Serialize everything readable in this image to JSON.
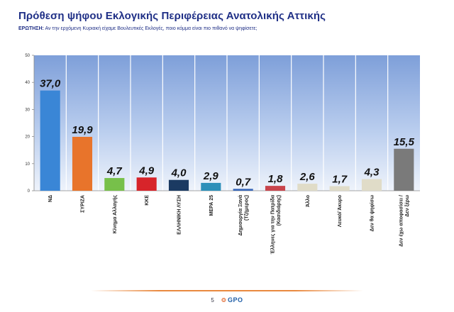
{
  "header": {
    "title": "Πρόθεση ψήφου Εκλογικής Περιφέρειας Ανατολικής Αττικής",
    "question_label": "ΕΡΩΤΗΣΗ:",
    "question_text": "Αν την ερχόμενη Κυριακή είχαμε Βουλευτικές Εκλογές, ποιο κόμμα είναι πιο πιθανό να ψηφίσετε;"
  },
  "footer": {
    "page_number": "5",
    "logo_mark": "❂",
    "logo_text": "GPO"
  },
  "chart_data": {
    "type": "bar",
    "title": "",
    "xlabel": "",
    "ylabel": "",
    "ylim": [
      0,
      50
    ],
    "yticks": [
      0,
      10,
      20,
      30,
      40,
      50
    ],
    "grid": false,
    "legend": "none",
    "categories": [
      "ΝΔ",
      "ΣΥΡΙΖΑ",
      "Κίνημα Αλλαγής",
      "ΚΚΕ",
      "ΕΛΛΗΝΙΚΗ ΛΥΣΗ",
      "ΜΕΡΑ 25",
      "Δημιουργία Ξανά (Τζήμερος)",
      "Έλληνες για την Πατρίδα (Κασιδιάρης)",
      "Άλλο",
      "Λευκό/ Άκυρο",
      "Δεν θα ψηφίσω",
      "Δεν έχω αποφασίσει / Δεν ξέρω"
    ],
    "values": [
      37.0,
      19.9,
      4.7,
      4.9,
      4.0,
      2.9,
      0.7,
      1.8,
      2.6,
      1.7,
      4.3,
      15.5
    ],
    "value_labels": [
      "37,0",
      "19,9",
      "4,7",
      "4,9",
      "4,0",
      "2,9",
      "0,7",
      "1,8",
      "2,6",
      "1,7",
      "4,3",
      "15,5"
    ],
    "colors": [
      "#3a86d6",
      "#e8742b",
      "#77c04a",
      "#d7242a",
      "#1b3a62",
      "#2d8fb9",
      "#3967b9",
      "#c8444c",
      "#e0dcc8",
      "#e0dcc8",
      "#e0dcc8",
      "#7a7a7a"
    ]
  }
}
